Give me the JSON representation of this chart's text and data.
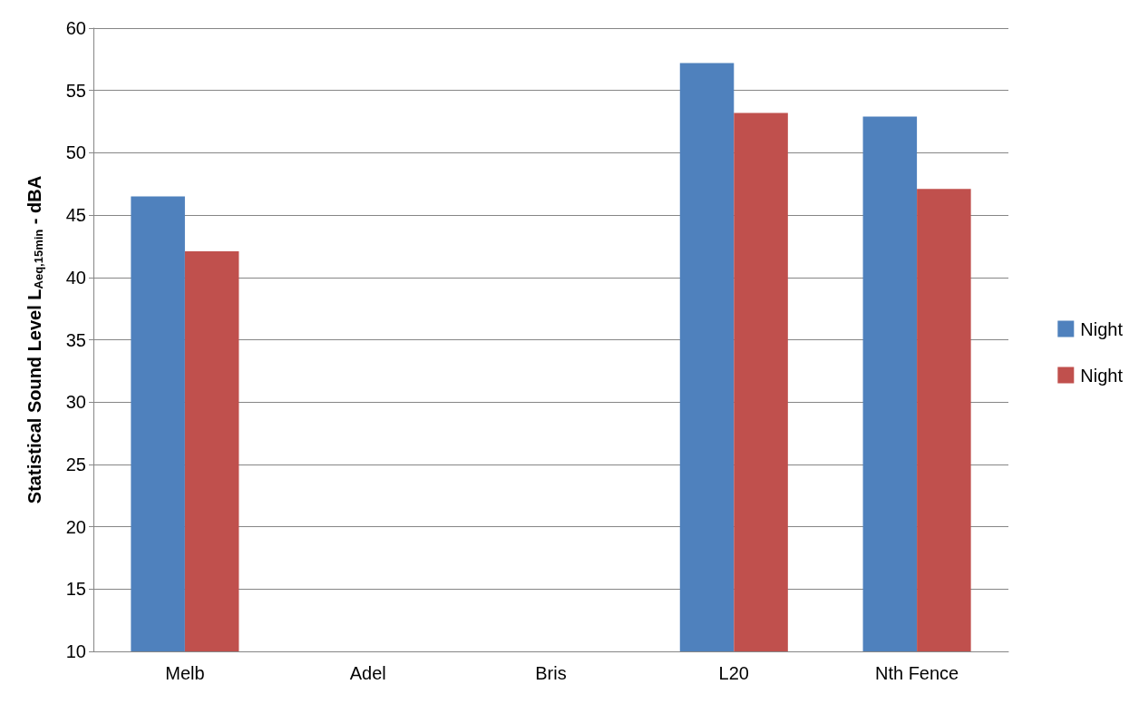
{
  "chart_data": {
    "type": "bar",
    "ylabel": "Statistical Sound Level L$_{Aeq,15min}$ - dBA",
    "categories": [
      "Melb",
      "Adel",
      "Bris",
      "L20",
      "Nth Fence"
    ],
    "series": [
      {
        "name": "Night",
        "color": "#4f81bd",
        "values": [
          46.5,
          null,
          null,
          57.2,
          52.9
        ]
      },
      {
        "name": "Night",
        "color": "#c0504d",
        "values": [
          42.1,
          null,
          null,
          53.2,
          47.1
        ]
      }
    ],
    "ylim": [
      10,
      60
    ],
    "yticks": [
      10,
      15,
      20,
      25,
      30,
      35,
      40,
      45,
      50,
      55,
      60
    ],
    "grid": "y",
    "legend": "right"
  }
}
